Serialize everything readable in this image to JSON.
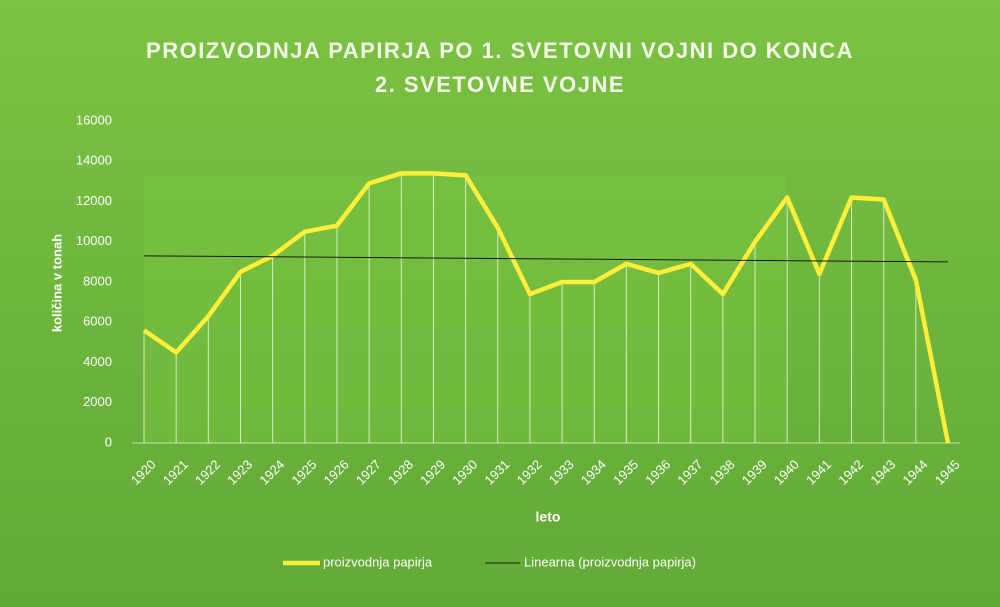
{
  "chart_data": {
    "type": "line",
    "title": [
      "PROIZVODNJA PAPIRJA PO 1. SVETOVNI VOJNI DO KONCA",
      "2. SVETOVNE VOJNE"
    ],
    "x_label": "leto",
    "y_label": "količina v tonah",
    "categories": [
      "1920",
      "1921",
      "1922",
      "1923",
      "1924",
      "1925",
      "1926",
      "1927",
      "1928",
      "1929",
      "1930",
      "1931",
      "1932",
      "1933",
      "1934",
      "1935",
      "1936",
      "1937",
      "1938",
      "1939",
      "1940",
      "1941",
      "1942",
      "1943",
      "1944",
      "1945"
    ],
    "series": [
      {
        "name": "proizvodnja papirja",
        "color": "#ffef3a",
        "values": [
          5600,
          4500,
          6300,
          8500,
          9300,
          10500,
          10800,
          12900,
          13400,
          13400,
          13300,
          10700,
          7400,
          8000,
          8000,
          8900,
          8450,
          8900,
          7400,
          10000,
          12200,
          8400,
          12200,
          12100,
          8100,
          0
        ]
      }
    ],
    "trendline": {
      "name": "Linearna (proizvodnja papirja)",
      "color": "#1a1a1a",
      "values": [
        9300,
        9000
      ]
    },
    "drop_lines": true,
    "ylim": [
      0,
      16000
    ],
    "yticks": [
      0,
      2000,
      4000,
      6000,
      8000,
      10000,
      12000,
      14000,
      16000
    ],
    "legend": "bottom"
  }
}
